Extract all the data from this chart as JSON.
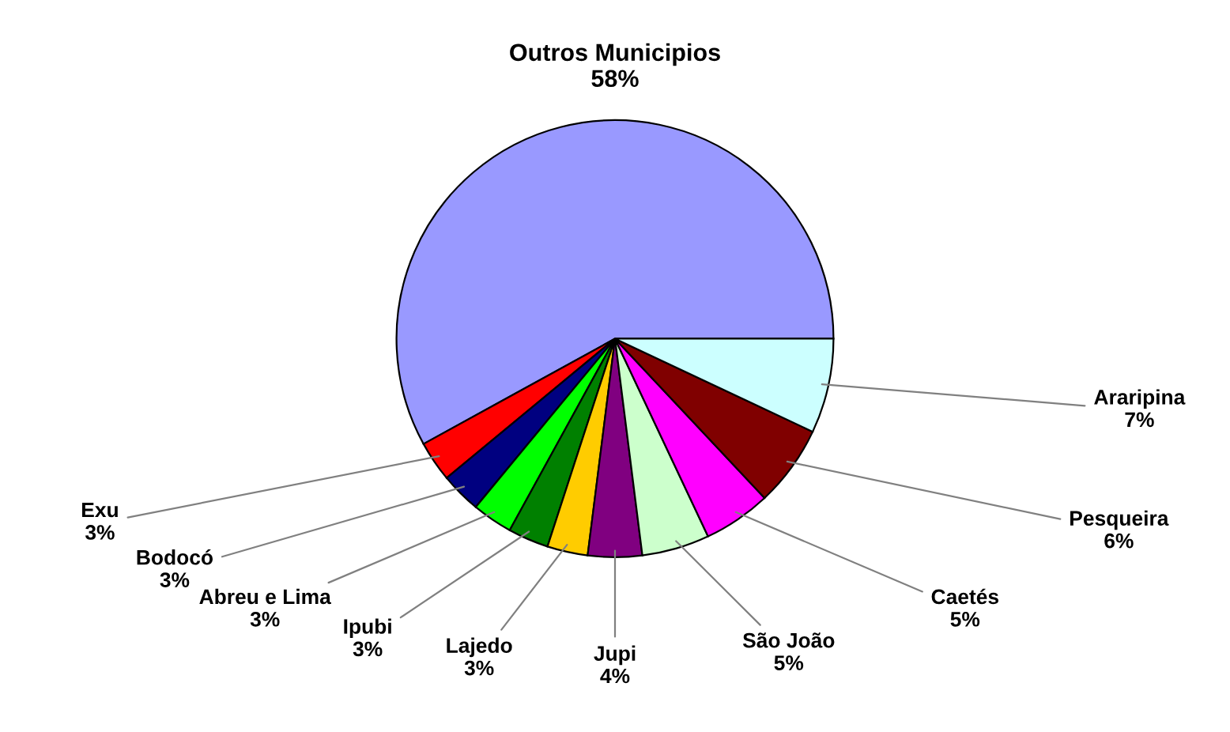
{
  "chart_data": {
    "type": "pie",
    "categories": [
      "Outros Municipios",
      "Exu",
      "Bodocó",
      "Abreu e Lima",
      "Ipubi",
      "Lajedo",
      "Jupi",
      "São João",
      "Caetés",
      "Pesqueira",
      "Araripina"
    ],
    "values": [
      58,
      3,
      3,
      3,
      3,
      3,
      4,
      5,
      5,
      6,
      7
    ],
    "value_labels": [
      "58%",
      "3%",
      "3%",
      "3%",
      "3%",
      "3%",
      "4%",
      "5%",
      "5%",
      "6%",
      "7%"
    ],
    "colors": [
      "#9999ff",
      "#ff0000",
      "#000080",
      "#00ff00",
      "#008000",
      "#ffcc00",
      "#800080",
      "#ccffcc",
      "#ff00ff",
      "#800000",
      "#ccffff"
    ]
  }
}
